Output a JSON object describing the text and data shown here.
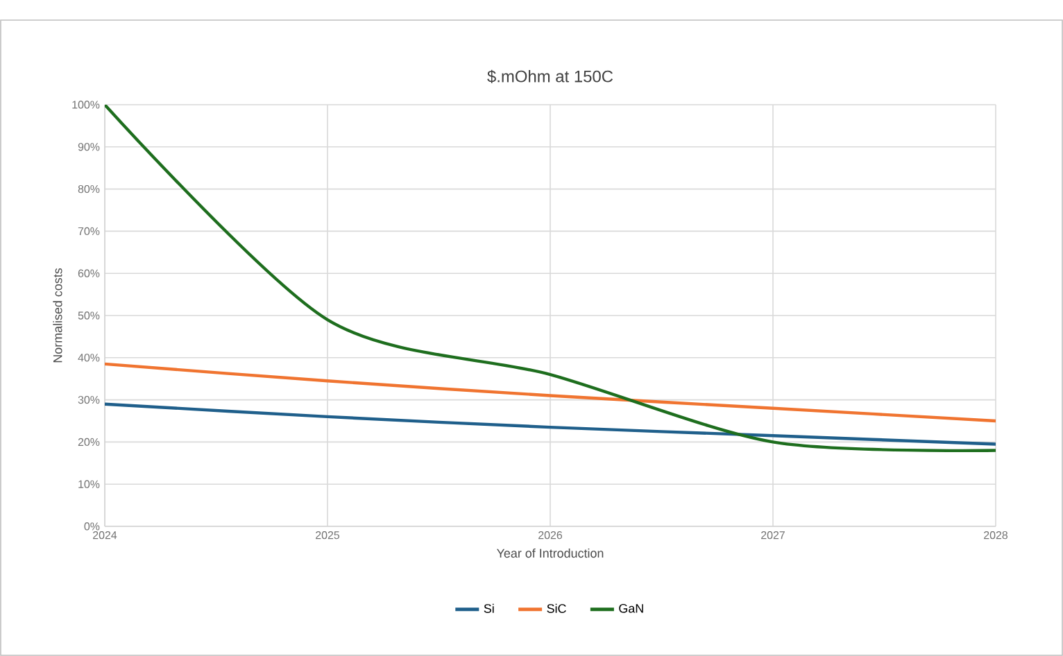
{
  "chart_data": {
    "type": "line",
    "title": "$.mOhm at 150C",
    "xlabel": "Year of Introduction",
    "ylabel": "Normalised costs",
    "x": [
      2024,
      2025,
      2026,
      2027,
      2028
    ],
    "series": [
      {
        "name": "Si",
        "color": "#1f5f8b",
        "values": [
          29,
          26,
          23.5,
          21.5,
          19.5
        ]
      },
      {
        "name": "SiC",
        "color": "#f07430",
        "values": [
          38.5,
          34.5,
          31,
          28,
          25
        ]
      },
      {
        "name": "GaN",
        "color": "#1e6e1e",
        "values": [
          100,
          49,
          36,
          20,
          18
        ]
      }
    ],
    "xlim": [
      2024,
      2028
    ],
    "xticks": [
      2024,
      2025,
      2026,
      2027,
      2028
    ],
    "ylim": [
      0,
      100
    ],
    "yticks": [
      {
        "value": 0,
        "label": "0%"
      },
      {
        "value": 10,
        "label": "10%"
      },
      {
        "value": 20,
        "label": "20%"
      },
      {
        "value": 30,
        "label": "30%"
      },
      {
        "value": 40,
        "label": "40%"
      },
      {
        "value": 50,
        "label": "50%"
      },
      {
        "value": 60,
        "label": "60%"
      },
      {
        "value": 70,
        "label": "70%"
      },
      {
        "value": 80,
        "label": "80%"
      },
      {
        "value": 90,
        "label": "90%"
      },
      {
        "value": 100,
        "label": "100%"
      }
    ],
    "grid": true,
    "legend": "bottom",
    "marker": "none",
    "line_style": "solid"
  }
}
